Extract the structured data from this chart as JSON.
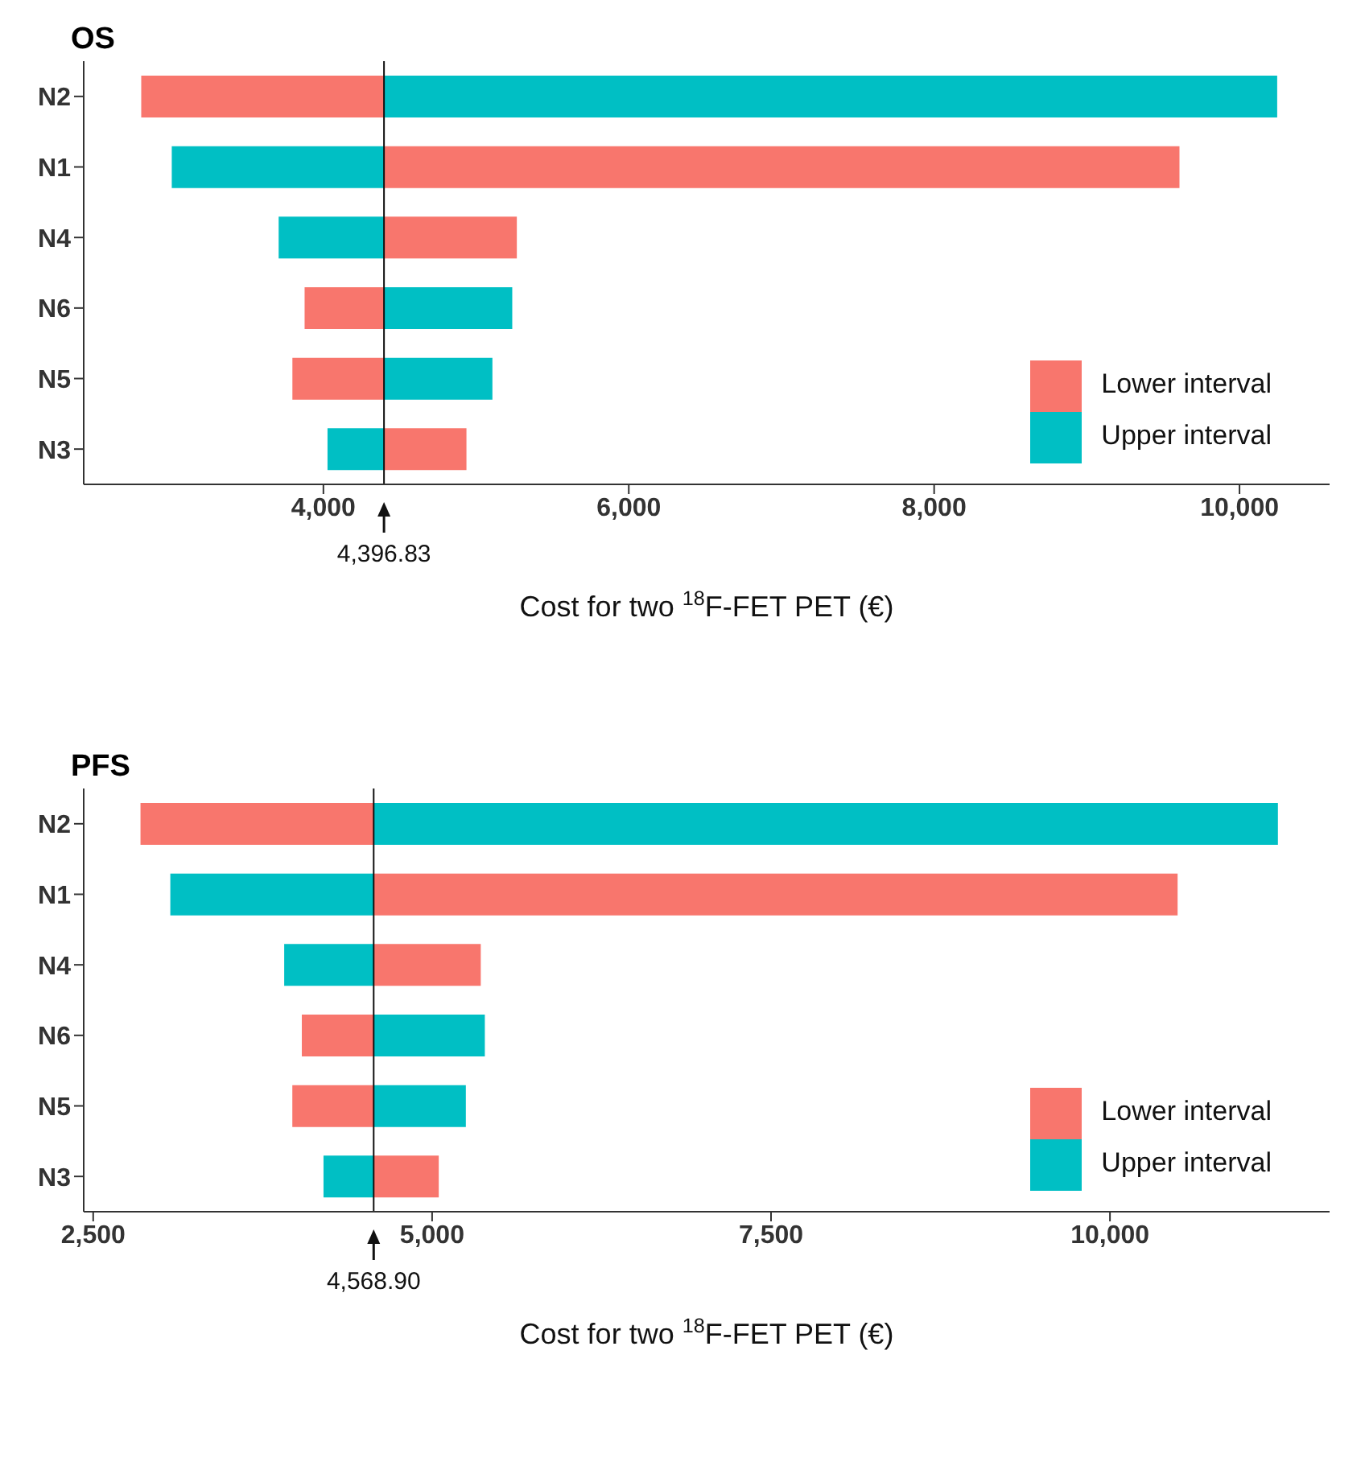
{
  "chart_data": [
    {
      "type": "bar",
      "orientation": "horizontal",
      "title": "OS",
      "xlabel": "Cost for two $^{18}$F-FET PET (€)",
      "categories": [
        "N2",
        "N1",
        "N4",
        "N6",
        "N5",
        "N3"
      ],
      "series": [
        {
          "name": "Lower interval",
          "color": "#f8766d",
          "base": [
            4396.83,
            4396.83,
            4396.83,
            4396.83,
            4396.83,
            4396.83
          ],
          "values": [
            -1590,
            5210,
            870,
            -520,
            -600,
            540
          ]
        },
        {
          "name": "Upper interval",
          "color": "#00bfc4",
          "base": [
            4396.83,
            4396.83,
            4396.83,
            4396.83,
            4396.83,
            4396.83
          ],
          "values": [
            5850,
            -1390,
            -690,
            840,
            710,
            -370
          ]
        }
      ],
      "xlim": [
        2430,
        10590
      ],
      "xticks": [
        {
          "value": 4000,
          "label": "4,000"
        },
        {
          "value": 6000,
          "label": "6,000"
        },
        {
          "value": 8000,
          "label": "8,000"
        },
        {
          "value": 10000,
          "label": "10,000"
        }
      ],
      "ref_lines": [
        {
          "axis": "x",
          "value": 4396.83,
          "label": "4,396.83"
        }
      ],
      "legend": "bottom right",
      "grid": false
    },
    {
      "type": "bar",
      "orientation": "horizontal",
      "title": "PFS",
      "xlabel": "Cost for two $^{18}$F-FET PET (€)",
      "categories": [
        "N2",
        "N1",
        "N4",
        "N6",
        "N5",
        "N3"
      ],
      "series": [
        {
          "name": "Lower interval",
          "color": "#f8766d",
          "base": [
            4568.9,
            4568.9,
            4568.9,
            4568.9,
            4568.9,
            4568.9
          ],
          "values": [
            -1720,
            5930,
            790,
            -530,
            -600,
            480
          ]
        },
        {
          "name": "Upper interval",
          "color": "#00bfc4",
          "base": [
            4568.9,
            4568.9,
            4568.9,
            4568.9,
            4568.9,
            4568.9
          ],
          "values": [
            6670,
            -1500,
            -660,
            820,
            680,
            -370
          ]
        }
      ],
      "xlim": [
        2430,
        11620
      ],
      "xticks": [
        {
          "value": 2500,
          "label": "2,500"
        },
        {
          "value": 5000,
          "label": "5,000"
        },
        {
          "value": 7500,
          "label": "7,500"
        },
        {
          "value": 10000,
          "label": "10,000"
        }
      ],
      "ref_lines": [
        {
          "axis": "x",
          "value": 4568.9,
          "label": "4,568.90"
        }
      ],
      "legend": "bottom right",
      "grid": false
    }
  ]
}
